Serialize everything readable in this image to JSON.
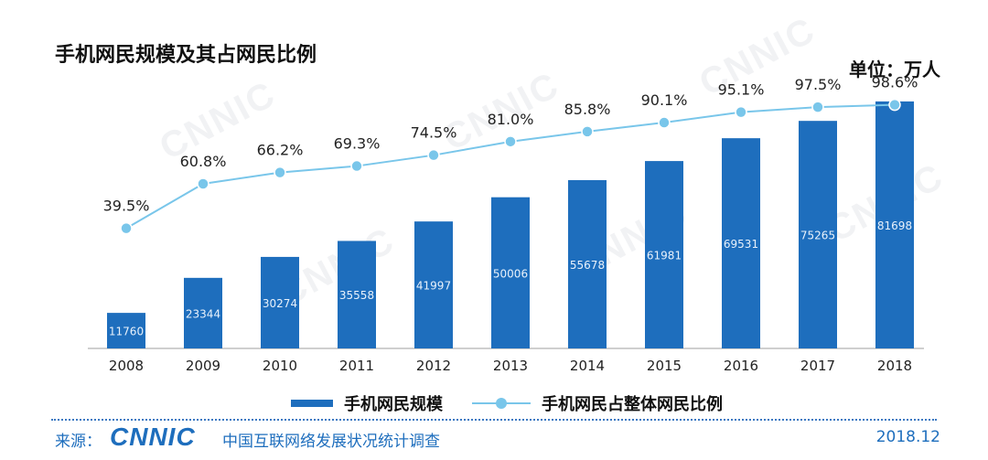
{
  "chart_data": {
    "type": "bar+line",
    "title": "手机网民规模及其占网民比例",
    "unit_label": "单位：万人",
    "categories": [
      "2008",
      "2009",
      "2010",
      "2011",
      "2012",
      "2013",
      "2014",
      "2015",
      "2016",
      "2017",
      "2018"
    ],
    "series": [
      {
        "name": "手机网民规模",
        "type": "bar",
        "color": "#1e6ebd",
        "values": [
          11760,
          23344,
          30274,
          35558,
          41997,
          50006,
          55678,
          61981,
          69531,
          75265,
          81698
        ],
        "labels": [
          "11760",
          "23344",
          "30274",
          "35558",
          "41997",
          "50006",
          "55678",
          "61981",
          "69531",
          "75265",
          "81698"
        ]
      },
      {
        "name": "手机网民占整体网民比例",
        "type": "line",
        "color": "#79c6ea",
        "values": [
          39.5,
          60.8,
          66.2,
          69.3,
          74.5,
          81.0,
          85.8,
          90.1,
          95.1,
          97.5,
          98.6
        ],
        "labels": [
          "39.5%",
          "60.8%",
          "66.2%",
          "69.3%",
          "74.5%",
          "81.0%",
          "85.8%",
          "90.1%",
          "95.1%",
          "97.5%",
          "98.6%"
        ]
      }
    ],
    "bar_ylim": [
      0,
      85000
    ],
    "line_ylim": [
      -18,
      105
    ]
  },
  "legend": {
    "bar": "手机网民规模",
    "line": "手机网民占整体网民比例"
  },
  "footer": {
    "source_label": "来源：",
    "logo_text": "CNNIC",
    "org": "中国互联网络发展状况统计调查",
    "date": "2018.12"
  },
  "watermark": {
    "text": "CNNIC"
  }
}
